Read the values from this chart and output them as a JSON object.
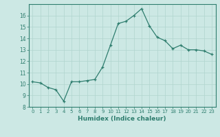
{
  "x": [
    0,
    1,
    2,
    3,
    4,
    5,
    6,
    7,
    8,
    9,
    10,
    11,
    12,
    13,
    14,
    15,
    16,
    17,
    18,
    19,
    20,
    21,
    22,
    23
  ],
  "y": [
    10.2,
    10.1,
    9.7,
    9.5,
    8.5,
    10.2,
    10.2,
    10.3,
    10.4,
    11.5,
    13.4,
    15.3,
    15.5,
    16.0,
    16.6,
    15.1,
    14.1,
    13.8,
    13.1,
    13.4,
    13.0,
    13.0,
    12.9,
    12.6
  ],
  "title": "",
  "xlabel": "Humidex (Indice chaleur)",
  "ylabel": "",
  "xlim": [
    -0.5,
    23.5
  ],
  "ylim": [
    8,
    17
  ],
  "yticks": [
    8,
    9,
    10,
    11,
    12,
    13,
    14,
    15,
    16
  ],
  "xticks": [
    0,
    1,
    2,
    3,
    4,
    5,
    6,
    7,
    8,
    9,
    10,
    11,
    12,
    13,
    14,
    15,
    16,
    17,
    18,
    19,
    20,
    21,
    22,
    23
  ],
  "line_color": "#2e7d6e",
  "marker": "+",
  "bg_color": "#cce8e4",
  "grid_color": "#b0d4ce",
  "axis_color": "#2e7d6e",
  "tick_color": "#2e7d6e",
  "label_color": "#2e7d6e"
}
